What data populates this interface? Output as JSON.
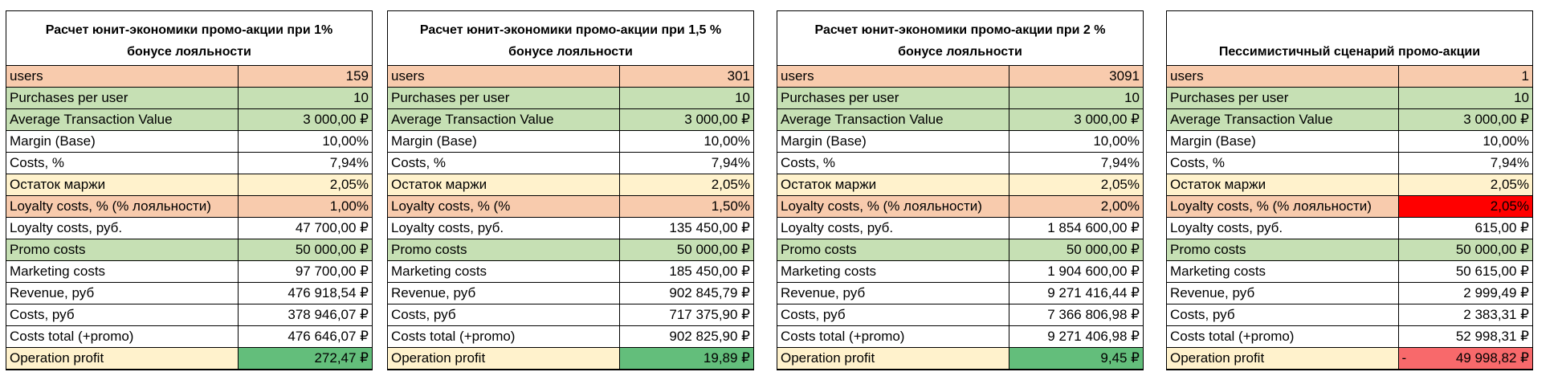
{
  "currency_symbol": "₽",
  "colors": {
    "orange": "#f8cbad",
    "green": "#c6e0b4",
    "yellow": "#fff2cc",
    "profit_green": "#63be7b",
    "red": "#ff0000",
    "loss_red": "#f8696b"
  },
  "sheets": [
    {
      "title_line1": "Расчет юнит-экономики промо-акции при 1%",
      "title_line2": "бонусе лояльности",
      "rows": [
        {
          "label": "users",
          "value": "159"
        },
        {
          "label": "Purchases per user",
          "value": "10"
        },
        {
          "label": "Average Transaction Value",
          "value": "3 000,00 ₽"
        },
        {
          "label": "Margin (Base)",
          "value": "10,00%"
        },
        {
          "label": "Costs, %",
          "value": "7,94%"
        },
        {
          "label": "Остаток маржи",
          "value": "2,05%"
        },
        {
          "label": "Loyalty costs, % (% лояльности)",
          "value": "1,00%"
        },
        {
          "label": "Loyalty costs, руб.",
          "value": "47 700,00 ₽"
        },
        {
          "label": "Promo costs",
          "value": "50 000,00 ₽"
        },
        {
          "label": "Marketing costs",
          "value": "97 700,00 ₽"
        },
        {
          "label": "Revenue, руб",
          "value": "476 918,54 ₽"
        },
        {
          "label": "Costs, руб",
          "value": "378 946,07 ₽"
        },
        {
          "label": "Costs total (+promo)",
          "value": "476 646,07 ₽"
        },
        {
          "label": "Operation profit",
          "value": "272,47 ₽"
        }
      ]
    },
    {
      "title_line1": "Расчет юнит-экономики промо-акции при 1,5 %",
      "title_line2": "бонусе лояльности",
      "rows": [
        {
          "label": "users",
          "value": "301"
        },
        {
          "label": "Purchases per user",
          "value": "10"
        },
        {
          "label": "Average Transaction Value",
          "value": "3 000,00 ₽"
        },
        {
          "label": "Margin (Base)",
          "value": "10,00%"
        },
        {
          "label": "Costs, %",
          "value": "7,94%"
        },
        {
          "label": "Остаток маржи",
          "value": "2,05%"
        },
        {
          "label": "Loyalty costs, % (%",
          "value": "1,50%"
        },
        {
          "label": "Loyalty costs, руб.",
          "value": "135 450,00 ₽"
        },
        {
          "label": "Promo costs",
          "value": "50 000,00 ₽"
        },
        {
          "label": "Marketing costs",
          "value": "185 450,00 ₽"
        },
        {
          "label": "Revenue, руб",
          "value": "902 845,79 ₽"
        },
        {
          "label": "Costs, руб",
          "value": "717 375,90 ₽"
        },
        {
          "label": "Costs total (+promo)",
          "value": "902 825,90 ₽"
        },
        {
          "label": "Operation profit",
          "value": "19,89 ₽"
        }
      ]
    },
    {
      "title_line1": "Расчет юнит-экономики промо-акции при 2 %",
      "title_line2": "бонусе лояльности",
      "rows": [
        {
          "label": "users",
          "value": "3091"
        },
        {
          "label": "Purchases per user",
          "value": "10"
        },
        {
          "label": "Average Transaction Value",
          "value": "3 000,00 ₽"
        },
        {
          "label": "Margin (Base)",
          "value": "10,00%"
        },
        {
          "label": "Costs, %",
          "value": "7,94%"
        },
        {
          "label": "Остаток маржи",
          "value": "2,05%"
        },
        {
          "label": "Loyalty costs, % (% лояльности)",
          "value": "2,00%"
        },
        {
          "label": "Loyalty costs, руб.",
          "value": "1 854 600,00 ₽"
        },
        {
          "label": "Promo costs",
          "value": "50 000,00 ₽"
        },
        {
          "label": "Marketing costs",
          "value": "1 904 600,00 ₽"
        },
        {
          "label": "Revenue, руб",
          "value": "9 271 416,44 ₽"
        },
        {
          "label": "Costs, руб",
          "value": "7 366 806,98 ₽"
        },
        {
          "label": "Costs total (+promo)",
          "value": "9 271 406,98 ₽"
        },
        {
          "label": "Operation profit",
          "value": "9,45 ₽"
        }
      ]
    },
    {
      "title_line1": "Пессимистичный сценарий промо-акции",
      "title_line2": "",
      "rows": [
        {
          "label": "users",
          "value": "1"
        },
        {
          "label": "Purchases per user",
          "value": "10"
        },
        {
          "label": "Average Transaction Value",
          "value": "3 000,00 ₽"
        },
        {
          "label": "Margin (Base)",
          "value": "10,00%"
        },
        {
          "label": "Costs, %",
          "value": "7,94%"
        },
        {
          "label": "Остаток маржи",
          "value": "2,05%"
        },
        {
          "label": "Loyalty costs, % (% лояльности)",
          "value": "2,05%"
        },
        {
          "label": "Loyalty costs, руб.",
          "value": "615,00 ₽"
        },
        {
          "label": "Promo costs",
          "value": "50 000,00 ₽"
        },
        {
          "label": "Marketing costs",
          "value": "50 615,00 ₽"
        },
        {
          "label": "Revenue, руб",
          "value": "2 999,49 ₽"
        },
        {
          "label": "Costs, руб",
          "value": "2 383,31 ₽"
        },
        {
          "label": "Costs total (+promo)",
          "value": "52 998,31 ₽"
        },
        {
          "label": "Operation profit",
          "value_sign": "-",
          "value": "49 998,82 ₽"
        }
      ]
    }
  ]
}
